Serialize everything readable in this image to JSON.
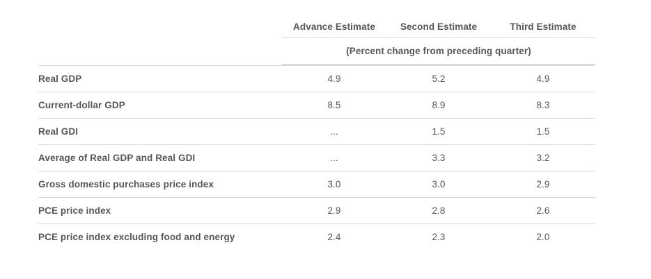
{
  "table": {
    "col_headers": [
      "Advance Estimate",
      "Second Estimate",
      "Third Estimate"
    ],
    "subheader": "(Percent change from preceding quarter)",
    "rows": [
      {
        "label": "Real GDP",
        "values": [
          "4.9",
          "5.2",
          "4.9"
        ]
      },
      {
        "label": "Current-dollar GDP",
        "values": [
          "8.5",
          "8.9",
          "8.3"
        ]
      },
      {
        "label": "Real GDI",
        "values": [
          "...",
          "1.5",
          "1.5"
        ]
      },
      {
        "label": "Average of Real GDP and Real GDI",
        "values": [
          "...",
          "3.3",
          "3.2"
        ]
      },
      {
        "label": "Gross domestic purchases price index",
        "values": [
          "3.0",
          "3.0",
          "2.9"
        ]
      },
      {
        "label": "PCE price index",
        "values": [
          "2.9",
          "2.8",
          "2.6"
        ]
      },
      {
        "label": "PCE price index excluding food and energy",
        "values": [
          "2.4",
          "2.3",
          "2.0"
        ]
      }
    ]
  },
  "colors": {
    "text": "#55565b",
    "divider": "#d6d6d6",
    "thick_divider": "#d9d9d9",
    "background": "#ffffff"
  },
  "chart_data": {
    "type": "table",
    "columns": [
      "",
      "Advance Estimate",
      "Second Estimate",
      "Third Estimate"
    ],
    "units_note": "(Percent change from preceding quarter)",
    "rows": [
      [
        "Real GDP",
        4.9,
        5.2,
        4.9
      ],
      [
        "Current-dollar GDP",
        8.5,
        8.9,
        8.3
      ],
      [
        "Real GDI",
        null,
        1.5,
        1.5
      ],
      [
        "Average of Real GDP and Real GDI",
        null,
        3.3,
        3.2
      ],
      [
        "Gross domestic purchases price index",
        3.0,
        3.0,
        2.9
      ],
      [
        "PCE price index",
        2.9,
        2.8,
        2.6
      ],
      [
        "PCE price index excluding food and energy",
        2.4,
        2.3,
        2.0
      ]
    ]
  }
}
